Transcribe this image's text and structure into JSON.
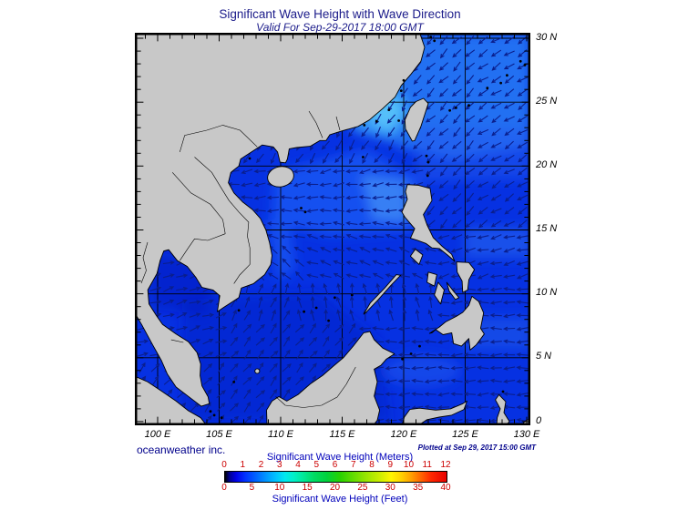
{
  "header": {
    "title": "Significant Wave Height with Wave Direction",
    "subtitle": "Valid For Sep-29-2017 18:00 GMT"
  },
  "footer": {
    "credit": "oceanweather inc.",
    "plotted": "Plotted at Sep 29, 2017 15:00 GMT"
  },
  "axes": {
    "lat_labels": [
      "30 N",
      "25 N",
      "20 N",
      "15 N",
      "10 N",
      "5 N",
      "0"
    ],
    "lon_labels": [
      "100 E",
      "105 E",
      "110 E",
      "115 E",
      "120 E",
      "125 E",
      "130 E"
    ]
  },
  "legend": {
    "meters_title": "Significant Wave Height (Meters)",
    "feet_title": "Significant Wave Height (Feet)",
    "meters_ticks": [
      "0",
      "1",
      "2",
      "3",
      "4",
      "5",
      "6",
      "7",
      "8",
      "9",
      "10",
      "11",
      "12"
    ],
    "feet_ticks": [
      "0",
      "5",
      "10",
      "15",
      "20",
      "25",
      "30",
      "35",
      "40"
    ],
    "gradient": [
      {
        "p": 0,
        "c": "#000000"
      },
      {
        "p": 0.02,
        "c": "#000090"
      },
      {
        "p": 0.05,
        "c": "#0000e8"
      },
      {
        "p": 0.09,
        "c": "#0030ff"
      },
      {
        "p": 0.14,
        "c": "#0064ff"
      },
      {
        "p": 0.185,
        "c": "#0096ff"
      },
      {
        "p": 0.23,
        "c": "#00c3ff"
      },
      {
        "p": 0.27,
        "c": "#00e8f0"
      },
      {
        "p": 0.31,
        "c": "#00f0c8"
      },
      {
        "p": 0.355,
        "c": "#00e896"
      },
      {
        "p": 0.4,
        "c": "#00dc64"
      },
      {
        "p": 0.46,
        "c": "#00d23c"
      },
      {
        "p": 0.52,
        "c": "#28d200"
      },
      {
        "p": 0.58,
        "c": "#64dc00"
      },
      {
        "p": 0.64,
        "c": "#9be600"
      },
      {
        "p": 0.7,
        "c": "#cdee00"
      },
      {
        "p": 0.75,
        "c": "#fff500"
      },
      {
        "p": 0.795,
        "c": "#ffd200"
      },
      {
        "p": 0.84,
        "c": "#ffa000"
      },
      {
        "p": 0.885,
        "c": "#ff6400"
      },
      {
        "p": 0.93,
        "c": "#ff2800"
      },
      {
        "p": 1,
        "c": "#e80000"
      }
    ]
  },
  "colors": {
    "title_text": "#1b1b8a",
    "credit_text": "#00008b",
    "legend_title_text": "#0000bb",
    "legend_tick_text": "#cc0000",
    "land": "#c8c8c8",
    "coastline": "#000000",
    "ocean_base": "#0631e2",
    "arrow": "#0a1e8c"
  }
}
